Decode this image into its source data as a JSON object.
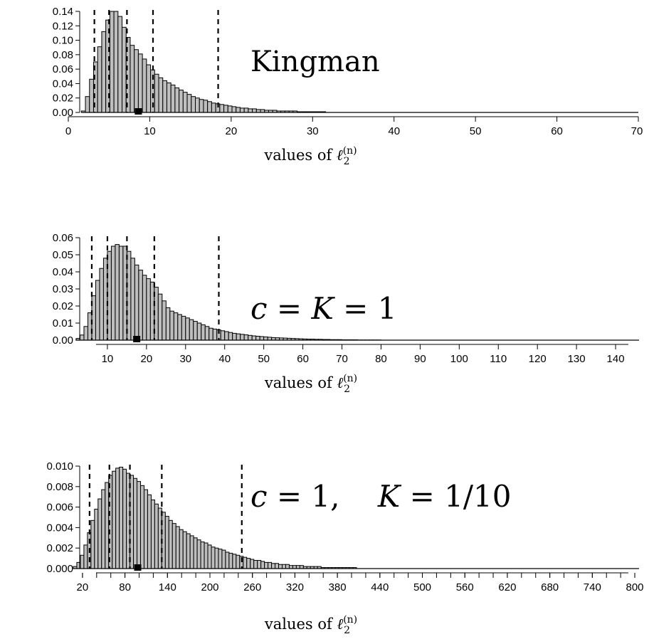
{
  "chart_data": [
    {
      "type": "bar",
      "histogram": true,
      "annotation": "Kingman",
      "xlabel": "values of ℓ₂⁽ⁿ⁾",
      "xlim": [
        0,
        70
      ],
      "ylim": [
        0,
        0.14
      ],
      "x_ticks": [
        0,
        10,
        20,
        30,
        40,
        50,
        60,
        70
      ],
      "x_tick_labels": [
        "0",
        "10",
        "20",
        "30",
        "40",
        "50",
        "60",
        "70"
      ],
      "y_ticks": [
        0,
        0.02,
        0.04,
        0.06,
        0.08,
        0.1,
        0.12,
        0.14
      ],
      "y_tick_labels": [
        "0.00",
        "0.02",
        "0.04",
        "0.06",
        "0.08",
        "0.10",
        "0.12",
        "0.14"
      ],
      "bin_start": 1.6,
      "bin_width": 0.5,
      "values": [
        0.002,
        0.022,
        0.046,
        0.07,
        0.091,
        0.112,
        0.128,
        0.14,
        0.14,
        0.133,
        0.118,
        0.104,
        0.093,
        0.087,
        0.081,
        0.074,
        0.066,
        0.059,
        0.053,
        0.048,
        0.044,
        0.041,
        0.038,
        0.034,
        0.031,
        0.028,
        0.025,
        0.022,
        0.02,
        0.018,
        0.017,
        0.015,
        0.013,
        0.012,
        0.011,
        0.01,
        0.009,
        0.008,
        0.007,
        0.006,
        0.006,
        0.005,
        0.005,
        0.004,
        0.004,
        0.003,
        0.003,
        0.003,
        0.002,
        0.002,
        0.002,
        0.002,
        0.002,
        0.001,
        0.001,
        0.001,
        0.001,
        0.001,
        0.001,
        0.001
      ],
      "dashed_lines": [
        3.2,
        5.0,
        7.2,
        10.4,
        18.4
      ],
      "marker_x": 8.6
    },
    {
      "type": "bar",
      "histogram": true,
      "annotation": "c = K = 1",
      "xlabel": "values of ℓ₂⁽ⁿ⁾",
      "xlim": [
        0,
        146
      ],
      "ylim": [
        0,
        0.06
      ],
      "x_ticks": [
        10,
        20,
        30,
        40,
        50,
        60,
        70,
        80,
        90,
        100,
        110,
        120,
        130,
        140
      ],
      "x_tick_labels": [
        "10",
        "20",
        "30",
        "40",
        "50",
        "60",
        "70",
        "80",
        "90",
        "100",
        "110",
        "120",
        "130",
        "140"
      ],
      "y_ticks": [
        0,
        0.01,
        0.02,
        0.03,
        0.04,
        0.05,
        0.06
      ],
      "y_tick_labels": [
        "0.00",
        "0.01",
        "0.02",
        "0.03",
        "0.04",
        "0.05",
        "0.06"
      ],
      "bin_start": 2,
      "bin_width": 1,
      "values": [
        0.001,
        0.003,
        0.008,
        0.016,
        0.026,
        0.035,
        0.042,
        0.048,
        0.052,
        0.055,
        0.056,
        0.055,
        0.055,
        0.052,
        0.048,
        0.044,
        0.041,
        0.038,
        0.036,
        0.034,
        0.031,
        0.027,
        0.023,
        0.019,
        0.017,
        0.016,
        0.015,
        0.014,
        0.013,
        0.012,
        0.011,
        0.01,
        0.009,
        0.008,
        0.007,
        0.0065,
        0.006,
        0.0055,
        0.005,
        0.0045,
        0.004,
        0.0037,
        0.0034,
        0.0031,
        0.0028,
        0.0025,
        0.0023,
        0.0021,
        0.0019,
        0.0017,
        0.0015,
        0.0014,
        0.0013,
        0.0012,
        0.0011,
        0.001,
        0.0009,
        0.0008,
        0.0007,
        0.0006,
        0.0006,
        0.0005,
        0.0005,
        0.0004,
        0.0004,
        0.0003,
        0.0003,
        0.0003,
        0.0002,
        0.0002,
        0.0002,
        0.0002,
        0.0001,
        0.0001,
        0.0001,
        0.0001,
        0.0001,
        0.0001
      ],
      "dashed_lines": [
        6,
        10,
        15,
        22,
        38.5
      ],
      "marker_x": 17.5
    },
    {
      "type": "bar",
      "histogram": true,
      "annotation": "c = 1,    K = 1/10",
      "xlabel": "values of ℓ₂⁽ⁿ⁾",
      "xlim": [
        0,
        806
      ],
      "ylim": [
        0,
        0.01
      ],
      "x_ticks": [
        20,
        80,
        140,
        200,
        260,
        320,
        380,
        440,
        500,
        560,
        620,
        680,
        740,
        800
      ],
      "x_tick_labels": [
        "20",
        "80",
        "140",
        "200",
        "260",
        "320",
        "380",
        "440",
        "500",
        "560",
        "620",
        "680",
        "740",
        "800"
      ],
      "x_minor_tick_step": 20,
      "y_ticks": [
        0,
        0.002,
        0.004,
        0.006,
        0.008,
        0.01
      ],
      "y_tick_labels": [
        "0.000",
        "0.002",
        "0.004",
        "0.006",
        "0.008",
        "0.010"
      ],
      "bin_start": 7,
      "bin_width": 5,
      "values": [
        0.0002,
        0.0006,
        0.0013,
        0.0023,
        0.0035,
        0.0047,
        0.0058,
        0.0068,
        0.0077,
        0.0084,
        0.0091,
        0.0095,
        0.0098,
        0.0099,
        0.0097,
        0.0093,
        0.0091,
        0.0088,
        0.0085,
        0.0081,
        0.0077,
        0.0072,
        0.0067,
        0.0063,
        0.0059,
        0.0055,
        0.0051,
        0.0047,
        0.0044,
        0.0041,
        0.0038,
        0.0036,
        0.0034,
        0.0032,
        0.003,
        0.0028,
        0.0026,
        0.0025,
        0.0023,
        0.0021,
        0.002,
        0.0019,
        0.0018,
        0.0016,
        0.0015,
        0.0014,
        0.0013,
        0.0012,
        0.0011,
        0.001,
        0.0009,
        0.0008,
        0.0008,
        0.0007,
        0.0006,
        0.0006,
        0.0005,
        0.0005,
        0.0004,
        0.0004,
        0.0004,
        0.0003,
        0.0003,
        0.0003,
        0.0003,
        0.0002,
        0.0002,
        0.0002,
        0.0002,
        0.0002,
        0.0001,
        0.0001,
        0.0001,
        0.0001,
        0.0001,
        0.0001,
        0.0001,
        0.0001,
        0.0001,
        0.0001
      ],
      "dashed_lines": [
        30,
        58,
        87,
        132,
        245
      ],
      "marker_x": 98
    }
  ]
}
